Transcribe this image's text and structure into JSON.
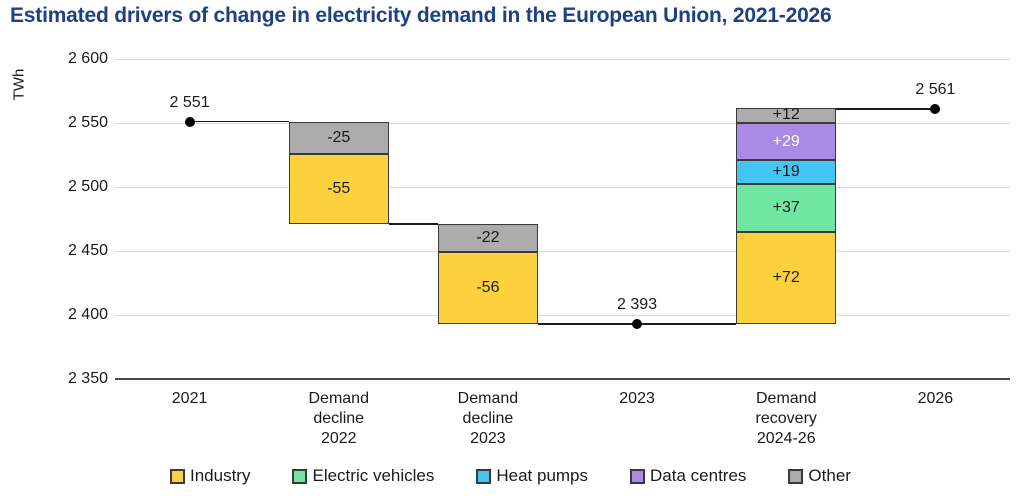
{
  "chart_data": {
    "type": "waterfall",
    "title": "Estimated drivers of change in electricity demand in the European Union, 2021-2026",
    "ylabel": "TWh",
    "ylim": [
      2350,
      2600
    ],
    "grid": true,
    "legend_position": "bottom",
    "yticks": [
      {
        "value": 2350,
        "label": "2 350"
      },
      {
        "value": 2400,
        "label": "2 400"
      },
      {
        "value": 2450,
        "label": "2 450"
      },
      {
        "value": 2500,
        "label": "2 500"
      },
      {
        "value": 2550,
        "label": "2 550"
      },
      {
        "value": 2600,
        "label": "2 600"
      }
    ],
    "columns": [
      {
        "type": "point",
        "x_label": "2021",
        "value": 2551,
        "value_label": "2 551"
      },
      {
        "type": "bar",
        "x_label": "Demand decline 2022",
        "x_label_lines": [
          "Demand",
          "decline",
          "2022"
        ],
        "start": 2551,
        "direction": "down",
        "segments": [
          {
            "series": "Other",
            "value": -25,
            "label": "-25"
          },
          {
            "series": "Industry",
            "value": -55,
            "label": "-55"
          }
        ]
      },
      {
        "type": "bar",
        "x_label": "Demand decline 2023",
        "x_label_lines": [
          "Demand",
          "decline",
          "2023"
        ],
        "start": 2471,
        "direction": "down",
        "segments": [
          {
            "series": "Other",
            "value": -22,
            "label": "-22"
          },
          {
            "series": "Industry",
            "value": -56,
            "label": "-56"
          }
        ]
      },
      {
        "type": "point",
        "x_label": "2023",
        "value": 2393,
        "value_label": "2 393"
      },
      {
        "type": "bar",
        "x_label": "Demand recovery 2024-26",
        "x_label_lines": [
          "Demand",
          "recovery",
          "2024-26"
        ],
        "start": 2393,
        "direction": "up",
        "segments": [
          {
            "series": "Other",
            "value": 12,
            "label": "+12"
          },
          {
            "series": "Data centres",
            "value": 29,
            "label": "+29",
            "text_color": "#FFFFFF"
          },
          {
            "series": "Heat pumps",
            "value": 19,
            "label": "+19"
          },
          {
            "series": "Electric vehicles",
            "value": 37,
            "label": "+37"
          },
          {
            "series": "Industry",
            "value": 72,
            "label": "+72"
          }
        ]
      },
      {
        "type": "point",
        "x_label": "2026",
        "value": 2561,
        "value_label": "2 561"
      }
    ],
    "connectors": [
      {
        "from_col": 0,
        "to_col": 1,
        "value": 2551
      },
      {
        "from_col": 1,
        "to_col": 2,
        "value": 2471
      },
      {
        "from_col": 2,
        "to_col": 4,
        "value": 2393
      },
      {
        "from_col": 4,
        "to_col": 5,
        "value": 2561
      }
    ],
    "legend": [
      {
        "name": "Industry",
        "color": "#FDD13E"
      },
      {
        "name": "Electric vehicles",
        "color": "#71E6A3"
      },
      {
        "name": "Heat pumps",
        "color": "#44C5F2"
      },
      {
        "name": "Data centres",
        "color": "#A78BE4"
      },
      {
        "name": "Other",
        "color": "#ACACAC"
      }
    ],
    "colors": {
      "title": "#1F4086",
      "text": "#1A1A1A",
      "gridline": "#D9D9D9",
      "axis_line": "#4A4A4A",
      "connector": "#1A1A1A",
      "dot": "#000000",
      "bar_border": "#3A3A3A",
      "background": "#FFFFFF"
    }
  }
}
